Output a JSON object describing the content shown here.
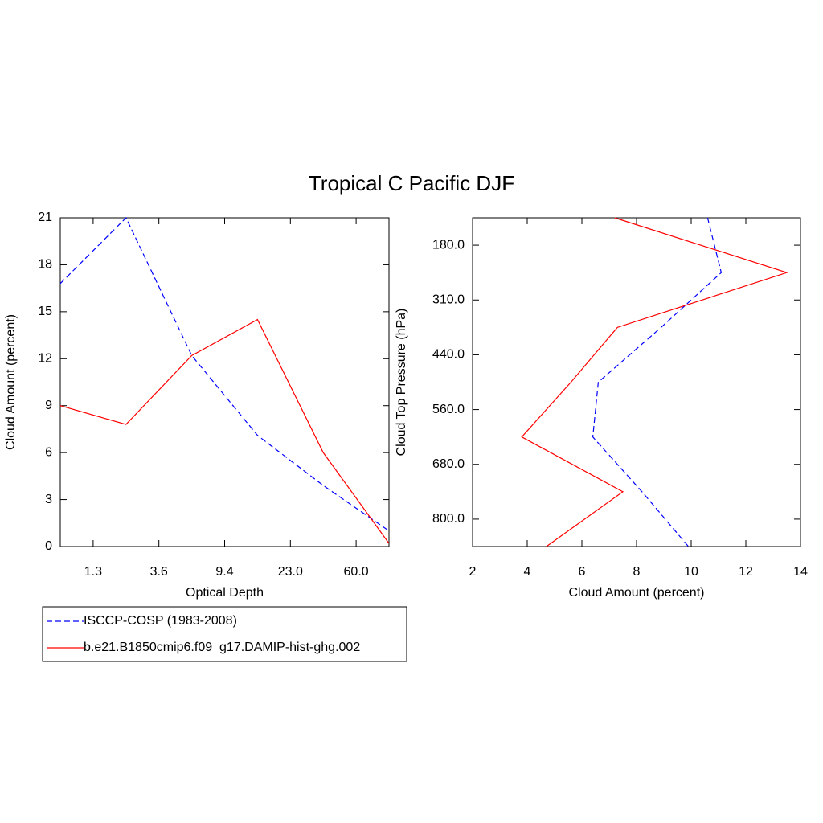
{
  "title": "Tropical C Pacific DJF",
  "chart_data": [
    {
      "type": "line",
      "orientation": "vertical",
      "xlabel": "Optical Depth",
      "ylabel": "Cloud Amount (percent)",
      "x": [
        0,
        1,
        2,
        3,
        4,
        5
      ],
      "xlim": [
        0,
        5
      ],
      "xticks": [
        {
          "value": 0.5,
          "label": "1.3"
        },
        {
          "value": 1.5,
          "label": "3.6"
        },
        {
          "value": 2.5,
          "label": "9.4"
        },
        {
          "value": 3.5,
          "label": "23.0"
        },
        {
          "value": 4.5,
          "label": "60.0"
        }
      ],
      "ylim": [
        0,
        21
      ],
      "yticks": [
        0,
        3,
        6,
        9,
        12,
        15,
        18,
        21
      ],
      "series": [
        {
          "name": "ISCCP-COSP (1983-2008)",
          "color": "#0000ff",
          "line_style": "dashed",
          "values": [
            16.8,
            21.0,
            12.2,
            7.1,
            3.9,
            1.0
          ]
        },
        {
          "name": "b.e21.B1850cmip6.f09_g17.DAMIP-hist-ghg.002",
          "color": "#ff0000",
          "line_style": "solid",
          "values": [
            9.0,
            7.8,
            12.2,
            14.5,
            6.0,
            0.2
          ]
        }
      ]
    },
    {
      "type": "line",
      "orientation": "horizontal",
      "xlabel": "Cloud Amount (percent)",
      "ylabel": "Cloud Top Pressure (hPa)",
      "y": [
        0,
        1,
        2,
        3,
        4,
        5,
        6
      ],
      "ylim": [
        0,
        6
      ],
      "y_reverse": true,
      "yticks": [
        {
          "value": 0.5,
          "label": "180.0"
        },
        {
          "value": 1.5,
          "label": "310.0"
        },
        {
          "value": 2.5,
          "label": "440.0"
        },
        {
          "value": 3.5,
          "label": "560.0"
        },
        {
          "value": 4.5,
          "label": "680.0"
        },
        {
          "value": 5.5,
          "label": "800.0"
        }
      ],
      "xlim": [
        2,
        14
      ],
      "xticks": [
        2,
        4,
        6,
        8,
        10,
        12,
        14
      ],
      "series": [
        {
          "color": "#0000ff",
          "line_style": "dashed",
          "values": [
            10.6,
            11.1,
            8.9,
            6.6,
            6.4,
            8.2,
            9.9
          ]
        },
        {
          "color": "#ff0000",
          "line_style": "solid",
          "values": [
            7.2,
            13.5,
            7.3,
            5.6,
            3.8,
            7.5,
            4.7
          ]
        }
      ]
    }
  ]
}
